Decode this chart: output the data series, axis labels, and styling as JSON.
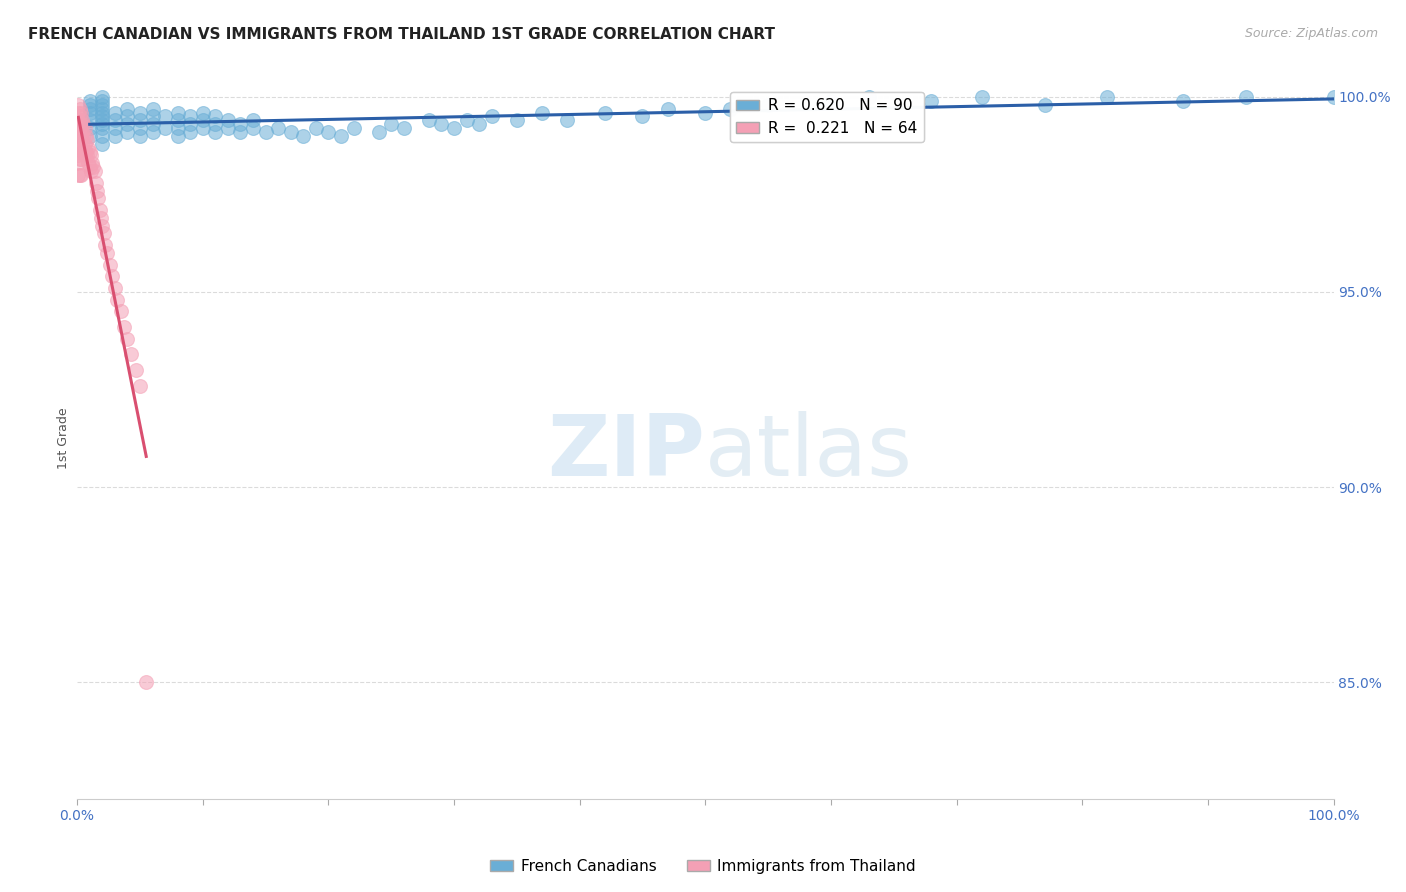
{
  "title": "FRENCH CANADIAN VS IMMIGRANTS FROM THAILAND 1ST GRADE CORRELATION CHART",
  "source": "Source: ZipAtlas.com",
  "ylabel": "1st Grade",
  "xlim": [
    0.0,
    1.0
  ],
  "ylim": [
    0.82,
    1.005
  ],
  "yticks": [
    0.85,
    0.9,
    0.95,
    1.0
  ],
  "ytick_labels": [
    "85.0%",
    "90.0%",
    "95.0%",
    "100.0%"
  ],
  "xticks": [
    0.0,
    0.1,
    0.2,
    0.3,
    0.4,
    0.5,
    0.6,
    0.7,
    0.8,
    0.9,
    1.0
  ],
  "xtick_labels": [
    "0.0%",
    "",
    "",
    "",
    "",
    "",
    "",
    "",
    "",
    "",
    "100.0%"
  ],
  "watermark_zip": "ZIP",
  "watermark_atlas": "atlas",
  "blue_R": 0.62,
  "blue_N": 90,
  "pink_R": 0.221,
  "pink_N": 64,
  "blue_color": "#6aaed6",
  "pink_color": "#f4a0b5",
  "blue_line_color": "#2b5fa8",
  "pink_line_color": "#d94f70",
  "grid_color": "#cccccc",
  "background_color": "#ffffff",
  "title_fontsize": 11,
  "tick_label_color": "#4472c4",
  "legend_label_blue": "French Canadians",
  "legend_label_pink": "Immigrants from Thailand",
  "blue_scatter_x": [
    0.01,
    0.01,
    0.01,
    0.01,
    0.01,
    0.01,
    0.01,
    0.02,
    0.02,
    0.02,
    0.02,
    0.02,
    0.02,
    0.02,
    0.02,
    0.02,
    0.02,
    0.02,
    0.03,
    0.03,
    0.03,
    0.03,
    0.04,
    0.04,
    0.04,
    0.04,
    0.05,
    0.05,
    0.05,
    0.05,
    0.06,
    0.06,
    0.06,
    0.06,
    0.07,
    0.07,
    0.08,
    0.08,
    0.08,
    0.08,
    0.09,
    0.09,
    0.09,
    0.1,
    0.1,
    0.1,
    0.11,
    0.11,
    0.11,
    0.12,
    0.12,
    0.13,
    0.13,
    0.14,
    0.14,
    0.15,
    0.16,
    0.17,
    0.18,
    0.19,
    0.2,
    0.21,
    0.22,
    0.24,
    0.25,
    0.26,
    0.28,
    0.29,
    0.3,
    0.31,
    0.32,
    0.33,
    0.35,
    0.37,
    0.39,
    0.42,
    0.45,
    0.47,
    0.5,
    0.52,
    0.55,
    0.6,
    0.63,
    0.68,
    0.72,
    0.77,
    0.82,
    0.88,
    0.93,
    1.0
  ],
  "blue_scatter_y": [
    0.99,
    0.992,
    0.994,
    0.996,
    0.997,
    0.998,
    0.999,
    0.988,
    0.99,
    0.992,
    0.993,
    0.994,
    0.995,
    0.996,
    0.997,
    0.998,
    0.999,
    1.0,
    0.99,
    0.992,
    0.994,
    0.996,
    0.991,
    0.993,
    0.995,
    0.997,
    0.99,
    0.992,
    0.994,
    0.996,
    0.991,
    0.993,
    0.995,
    0.997,
    0.992,
    0.995,
    0.99,
    0.992,
    0.994,
    0.996,
    0.991,
    0.993,
    0.995,
    0.992,
    0.994,
    0.996,
    0.991,
    0.993,
    0.995,
    0.992,
    0.994,
    0.991,
    0.993,
    0.992,
    0.994,
    0.991,
    0.992,
    0.991,
    0.99,
    0.992,
    0.991,
    0.99,
    0.992,
    0.991,
    0.993,
    0.992,
    0.994,
    0.993,
    0.992,
    0.994,
    0.993,
    0.995,
    0.994,
    0.996,
    0.994,
    0.996,
    0.995,
    0.997,
    0.996,
    0.997,
    0.998,
    0.999,
    1.0,
    0.999,
    1.0,
    0.998,
    1.0,
    0.999,
    1.0,
    1.0
  ],
  "pink_scatter_x": [
    0.001,
    0.001,
    0.001,
    0.001,
    0.001,
    0.001,
    0.001,
    0.001,
    0.001,
    0.002,
    0.002,
    0.002,
    0.002,
    0.002,
    0.002,
    0.002,
    0.003,
    0.003,
    0.003,
    0.003,
    0.003,
    0.003,
    0.004,
    0.004,
    0.004,
    0.005,
    0.005,
    0.005,
    0.006,
    0.006,
    0.006,
    0.007,
    0.007,
    0.008,
    0.008,
    0.009,
    0.009,
    0.01,
    0.01,
    0.011,
    0.011,
    0.012,
    0.013,
    0.014,
    0.015,
    0.016,
    0.017,
    0.018,
    0.019,
    0.02,
    0.021,
    0.022,
    0.024,
    0.026,
    0.028,
    0.03,
    0.032,
    0.035,
    0.037,
    0.04,
    0.043,
    0.047,
    0.05,
    0.055
  ],
  "pink_scatter_y": [
    0.998,
    0.996,
    0.994,
    0.992,
    0.99,
    0.988,
    0.985,
    0.983,
    0.98,
    0.997,
    0.995,
    0.992,
    0.99,
    0.987,
    0.984,
    0.98,
    0.996,
    0.993,
    0.99,
    0.987,
    0.984,
    0.98,
    0.994,
    0.991,
    0.988,
    0.993,
    0.99,
    0.986,
    0.992,
    0.988,
    0.985,
    0.99,
    0.986,
    0.989,
    0.985,
    0.987,
    0.983,
    0.986,
    0.982,
    0.985,
    0.981,
    0.983,
    0.982,
    0.981,
    0.978,
    0.976,
    0.974,
    0.971,
    0.969,
    0.967,
    0.965,
    0.962,
    0.96,
    0.957,
    0.954,
    0.951,
    0.948,
    0.945,
    0.941,
    0.938,
    0.934,
    0.93,
    0.926,
    0.85
  ]
}
